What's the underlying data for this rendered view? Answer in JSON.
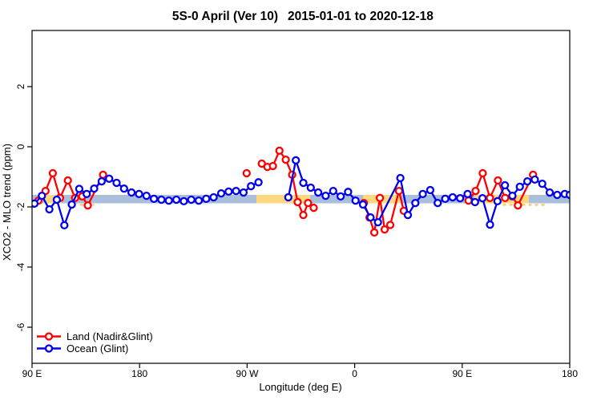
{
  "title": {
    "part1": "5S-0 April (Ver 10)",
    "part2": "2015-01-01 to 2020-12-18"
  },
  "chart_data": {
    "type": "line",
    "title": "5S-0 April (Ver 10)   2015-01-01 to 2020-12-18",
    "xlabel": "Longitude (deg E)",
    "ylabel": "XCO2 - MLO trend (ppm)",
    "x_axis_note": "longitude axis wraps eastward 90E-180-90W-0-90E-180; x stored as degrees east continued, 90 to 540",
    "x_range": [
      90,
      540
    ],
    "y_range": [
      -7.2,
      3.87
    ],
    "grid": false,
    "legend_position": "bottom-left-inside",
    "x_ticks": [
      {
        "x": 90,
        "label": "90 E"
      },
      {
        "x": 180,
        "label": "180"
      },
      {
        "x": 270,
        "label": "90 W"
      },
      {
        "x": 360,
        "label": "0"
      },
      {
        "x": 450,
        "label": "90 E"
      },
      {
        "x": 540,
        "label": "180"
      }
    ],
    "y_ticks": [
      {
        "v": 2,
        "label": "2"
      },
      {
        "v": 0,
        "label": "0"
      },
      {
        "v": -2,
        "label": "-2"
      },
      {
        "v": -4,
        "label": "-4"
      },
      {
        "v": -6,
        "label": "-6"
      }
    ],
    "bands": {
      "blue_band": {
        "color": "#a9bfdc",
        "x_range": [
          90,
          540
        ],
        "y_top": -1.6,
        "y_bottom": -1.88
      },
      "orange_color": "#ffd880",
      "orange_segments": [
        [
          100.1,
          114.8
        ],
        [
          277.8,
          322.7
        ],
        [
          367.0,
          398.5
        ],
        [
          460.2,
          505.8
        ]
      ],
      "dashed_color": "#ffc96b",
      "dashed_y": -1.93,
      "dashed_segments": [
        [
          130,
          142
        ],
        [
          484,
          519
        ]
      ]
    },
    "series": [
      {
        "name": "Land (Nadir&Glint)",
        "color": "#ff0000",
        "marker": "open-circle",
        "segments": [
          [
            [
              95.3,
              -1.79
            ],
            [
              101.3,
              -1.47
            ],
            [
              107.4,
              -0.88
            ],
            [
              113.4,
              -1.7
            ],
            [
              120.0,
              -1.12
            ],
            [
              126.0,
              -1.7
            ],
            [
              132.0,
              -1.65
            ],
            [
              136.7,
              -1.95
            ],
            [
              149.4,
              -0.93
            ]
          ],
          [
            [
              269.6,
              -0.88
            ]
          ],
          [
            [
              282.3,
              -0.56
            ],
            [
              287.0,
              -0.67
            ],
            [
              291.6,
              -0.64
            ],
            [
              297.0,
              -0.13
            ],
            [
              302.3,
              -0.43
            ],
            [
              307.7,
              -0.93
            ],
            [
              312.3,
              -1.84
            ],
            [
              317.0,
              -2.27
            ],
            [
              321.0,
              -1.87
            ],
            [
              325.7,
              -2.03
            ]
          ],
          [
            [
              367.7,
              -1.87
            ],
            [
              372.4,
              -2.35
            ],
            [
              376.4,
              -2.85
            ],
            [
              381.1,
              -1.7
            ],
            [
              385.1,
              -2.75
            ],
            [
              389.8,
              -2.6
            ],
            [
              397.1,
              -1.47
            ],
            [
              401.1,
              -2.13
            ]
          ],
          [
            [
              455.3,
              -1.79
            ],
            [
              461.2,
              -1.47
            ],
            [
              467.2,
              -0.88
            ],
            [
              473.2,
              -1.7
            ],
            [
              479.9,
              -1.12
            ],
            [
              485.9,
              -1.7
            ],
            [
              491.9,
              -1.65
            ],
            [
              496.6,
              -1.95
            ],
            [
              509.3,
              -0.93
            ]
          ]
        ]
      },
      {
        "name": "Ocean (Glint)",
        "color": "#0000ee",
        "marker": "open-circle",
        "segments": [
          [
            [
              92.0,
              -1.89
            ],
            [
              98.25,
              -1.63
            ],
            [
              104.5,
              -2.08
            ],
            [
              110.75,
              -1.76
            ],
            [
              117.0,
              -2.61
            ],
            [
              123.25,
              -1.92
            ],
            [
              129.5,
              -1.4
            ],
            [
              135.75,
              -1.57
            ],
            [
              142.0,
              -1.39
            ],
            [
              148.25,
              -1.15
            ],
            [
              154.5,
              -1.06
            ],
            [
              160.75,
              -1.2
            ],
            [
              167.0,
              -1.39
            ],
            [
              173.25,
              -1.52
            ],
            [
              179.5,
              -1.57
            ],
            [
              185.75,
              -1.63
            ],
            [
              192.0,
              -1.73
            ],
            [
              198.25,
              -1.76
            ],
            [
              204.5,
              -1.79
            ],
            [
              210.75,
              -1.76
            ],
            [
              217.0,
              -1.81
            ],
            [
              223.25,
              -1.76
            ],
            [
              229.5,
              -1.79
            ],
            [
              235.75,
              -1.73
            ],
            [
              242.0,
              -1.68
            ],
            [
              248.25,
              -1.55
            ],
            [
              254.5,
              -1.49
            ],
            [
              260.75,
              -1.47
            ],
            [
              267.0,
              -1.52
            ],
            [
              273.25,
              -1.31
            ],
            [
              279.5,
              -1.18
            ]
          ],
          [
            [
              304.5,
              -1.68
            ],
            [
              310.75,
              -0.45
            ],
            [
              317.0,
              -1.2
            ],
            [
              323.25,
              -1.36
            ],
            [
              329.5,
              -1.52
            ],
            [
              335.75,
              -1.63
            ],
            [
              342.0,
              -1.47
            ],
            [
              348.25,
              -1.65
            ],
            [
              354.5,
              -1.5
            ],
            [
              360.75,
              -1.79
            ],
            [
              367.0,
              -1.92
            ],
            [
              373.25,
              -2.35
            ],
            [
              379.5,
              -2.51
            ],
            [
              398.25,
              -1.04
            ],
            [
              404.5,
              -2.27
            ],
            [
              410.75,
              -1.87
            ],
            [
              417.0,
              -1.57
            ],
            [
              423.25,
              -1.44
            ],
            [
              429.5,
              -1.87
            ],
            [
              435.75,
              -1.73
            ],
            [
              442.0,
              -1.68
            ],
            [
              448.25,
              -1.71
            ],
            [
              454.5,
              -1.57
            ],
            [
              460.75,
              -1.84
            ],
            [
              467.0,
              -1.71
            ],
            [
              473.25,
              -2.59
            ],
            [
              479.5,
              -1.81
            ],
            [
              485.75,
              -1.28
            ],
            [
              492.0,
              -1.63
            ],
            [
              498.25,
              -1.33
            ],
            [
              504.5,
              -1.15
            ],
            [
              510.75,
              -1.09
            ],
            [
              517.0,
              -1.23
            ],
            [
              523.25,
              -1.52
            ],
            [
              529.5,
              -1.6
            ],
            [
              535.75,
              -1.57
            ],
            [
              540.0,
              -1.6
            ]
          ]
        ]
      }
    ]
  },
  "legend": {
    "items": [
      {
        "label": "Land (Nadir&Glint)",
        "color": "#ff0000"
      },
      {
        "label": "Ocean (Glint)",
        "color": "#0000ee"
      }
    ]
  }
}
